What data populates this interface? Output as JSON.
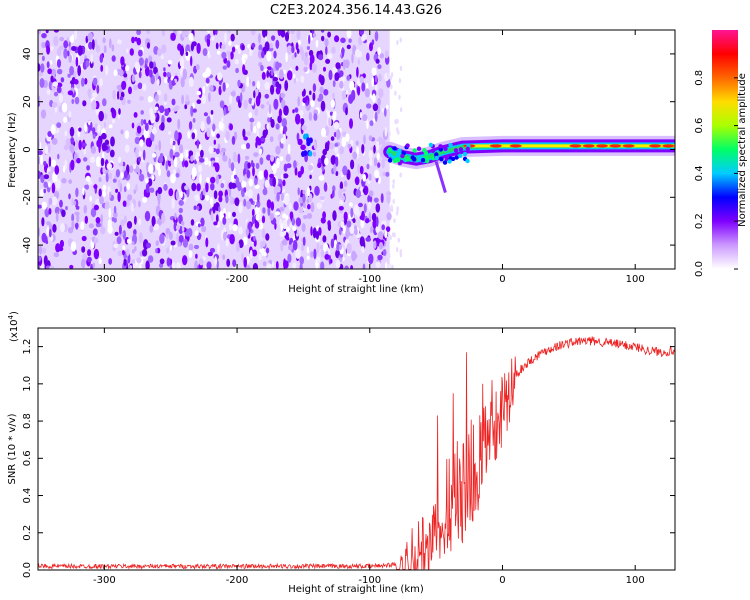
{
  "title": "C2E3.2024.356.14.43.G26",
  "chart_data": [
    {
      "type": "heatmap",
      "title": "C2E3.2024.356.14.43.G26",
      "xlabel": "Height of straight line (km)",
      "ylabel": "Frequency (Hz)",
      "xlim": [
        -350,
        130
      ],
      "ylim": [
        -50,
        50
      ],
      "xticks": [
        -300,
        -200,
        -100,
        0,
        100
      ],
      "yticks": [
        -40,
        -20,
        0,
        20,
        40
      ],
      "colorbar": {
        "label": "Normalized spectral amplitude",
        "range": [
          0,
          1
        ],
        "ticks": [
          "0.0",
          "0.2",
          "0.4",
          "0.6",
          "0.8"
        ],
        "colors": [
          "#ffffff",
          "#cc99ff",
          "#7f00ff",
          "#0000ff",
          "#00ccff",
          "#00ff66",
          "#aaff00",
          "#ffdd00",
          "#ff6600",
          "#ff0000",
          "#ff1493"
        ]
      },
      "regions": [
        {
          "x_range": [
            -350,
            -85
          ],
          "freq_range": [
            -50,
            50
          ],
          "description": "noise"
        },
        {
          "x_range": [
            -85,
            130
          ],
          "freq_range": [
            -5,
            5
          ],
          "description": "signal line near 0 Hz"
        }
      ],
      "signal_track": [
        {
          "x": -85,
          "f": -1
        },
        {
          "x": -75,
          "f": -3
        },
        {
          "x": -65,
          "f": -4
        },
        {
          "x": -55,
          "f": -3
        },
        {
          "x": -45,
          "f": -1
        },
        {
          "x": -30,
          "f": 1
        },
        {
          "x": 0,
          "f": 1.5
        },
        {
          "x": 50,
          "f": 1.5
        },
        {
          "x": 100,
          "f": 1.5
        },
        {
          "x": 130,
          "f": 1.5
        }
      ]
    },
    {
      "type": "line",
      "xlabel": "Height of straight line (km)",
      "ylabel": "SNR (10 * v/v)",
      "y_exponent_label": "(x10",
      "y_exponent_power": "4",
      "y_exponent_close": ")",
      "xlim": [
        -350,
        130
      ],
      "ylim": [
        0,
        1.3
      ],
      "xticks": [
        -300,
        -200,
        -100,
        0,
        100
      ],
      "yticks": [
        "0.0",
        "0.2",
        "0.4",
        "0.6",
        "0.8",
        "1.0",
        "1.2"
      ],
      "color": "#ee2222",
      "series": [
        {
          "x": [
            -350,
            -300,
            -250,
            -200,
            -150,
            -100,
            -80,
            -70,
            -60,
            -55,
            -50,
            -45,
            -40,
            -35,
            -30,
            -25,
            -20,
            -15,
            -10,
            -5,
            0,
            10,
            20,
            30,
            40,
            50,
            60,
            70,
            80,
            90,
            100,
            110,
            120,
            130
          ],
          "values": [
            0.02,
            0.02,
            0.02,
            0.02,
            0.02,
            0.02,
            0.03,
            0.08,
            0.15,
            0.2,
            0.3,
            0.35,
            0.4,
            0.45,
            0.5,
            0.55,
            0.6,
            0.65,
            0.7,
            0.8,
            0.9,
            1.05,
            1.12,
            1.17,
            1.2,
            1.22,
            1.23,
            1.23,
            1.22,
            1.21,
            1.2,
            1.18,
            1.17,
            1.18
          ],
          "spikes": [
            {
              "x": -49,
              "value": 0.83
            },
            {
              "x": -27,
              "value": 1.17
            },
            {
              "x": -37,
              "value": 0.95
            },
            {
              "x": -15,
              "value": 1.0
            },
            {
              "x": -8,
              "value": 1.02
            }
          ]
        }
      ]
    }
  ]
}
